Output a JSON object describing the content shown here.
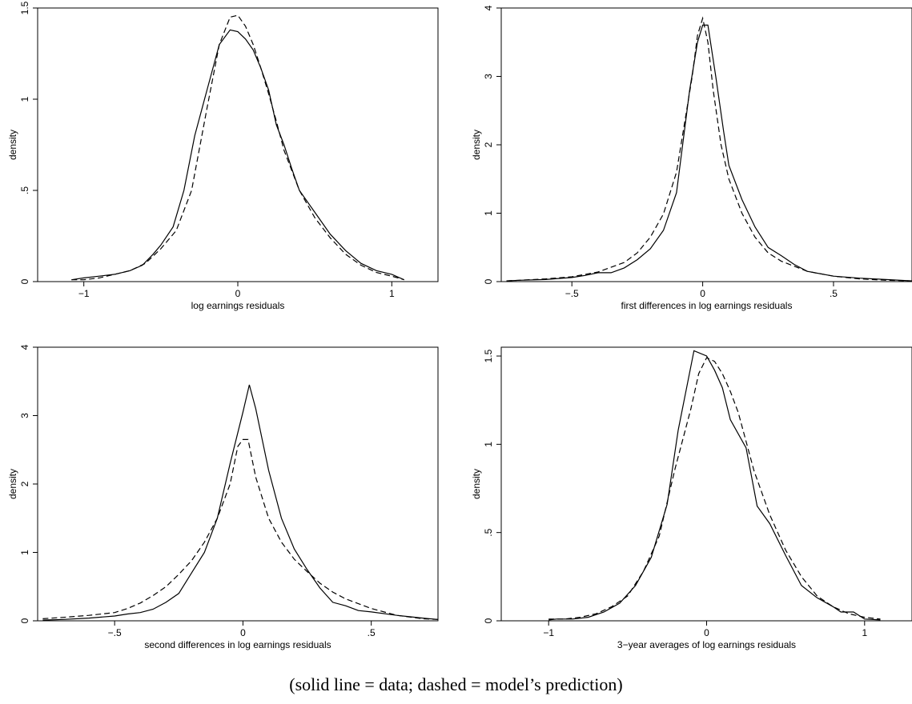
{
  "caption": "(solid line = data; dashed = model’s prediction)",
  "chart_data": [
    {
      "type": "line",
      "xlabel": "log earnings residuals",
      "ylabel": "density",
      "xlim": [
        -1.3,
        1.3
      ],
      "ylim": [
        0,
        1.5
      ],
      "xticks": [
        -1,
        0,
        1
      ],
      "xtick_labels": [
        "−1",
        "0",
        "1"
      ],
      "yticks": [
        0,
        0.5,
        1,
        1.5
      ],
      "ytick_labels": [
        "0",
        ".5",
        "1",
        "1.5"
      ],
      "series": [
        {
          "style": "solid",
          "x": [
            -1.08,
            -1.0,
            -0.9,
            -0.8,
            -0.7,
            -0.62,
            -0.55,
            -0.5,
            -0.42,
            -0.35,
            -0.28,
            -0.2,
            -0.12,
            -0.05,
            0.0,
            0.05,
            0.1,
            0.15,
            0.2,
            0.25,
            0.3,
            0.35,
            0.4,
            0.5,
            0.6,
            0.7,
            0.8,
            0.9,
            1.0,
            1.08
          ],
          "y": [
            0.01,
            0.02,
            0.03,
            0.04,
            0.06,
            0.09,
            0.15,
            0.2,
            0.3,
            0.5,
            0.8,
            1.05,
            1.3,
            1.38,
            1.37,
            1.33,
            1.27,
            1.17,
            1.05,
            0.86,
            0.75,
            0.62,
            0.5,
            0.38,
            0.26,
            0.17,
            0.1,
            0.06,
            0.04,
            0.01
          ]
        },
        {
          "style": "dashed",
          "x": [
            -1.08,
            -1.0,
            -0.9,
            -0.8,
            -0.7,
            -0.6,
            -0.5,
            -0.4,
            -0.3,
            -0.2,
            -0.12,
            -0.05,
            0.0,
            0.05,
            0.1,
            0.15,
            0.2,
            0.25,
            0.3,
            0.4,
            0.5,
            0.6,
            0.7,
            0.8,
            0.9,
            1.0,
            1.08
          ],
          "y": [
            0.01,
            0.01,
            0.02,
            0.04,
            0.06,
            0.1,
            0.18,
            0.28,
            0.5,
            0.95,
            1.3,
            1.45,
            1.46,
            1.4,
            1.3,
            1.17,
            1.03,
            0.88,
            0.72,
            0.5,
            0.35,
            0.24,
            0.15,
            0.09,
            0.05,
            0.03,
            0.01
          ]
        }
      ]
    },
    {
      "type": "line",
      "xlabel": "first differences in log earnings residuals",
      "ylabel": "density",
      "xlim": [
        -0.77,
        0.8
      ],
      "ylim": [
        0,
        4
      ],
      "xticks": [
        -0.5,
        0,
        0.5
      ],
      "xtick_labels": [
        "−.5",
        "0",
        ".5"
      ],
      "yticks": [
        0,
        1,
        2,
        3,
        4
      ],
      "ytick_labels": [
        "0",
        "1",
        "2",
        "3",
        "4"
      ],
      "series": [
        {
          "style": "solid",
          "x": [
            -0.75,
            -0.7,
            -0.6,
            -0.5,
            -0.45,
            -0.4,
            -0.35,
            -0.3,
            -0.25,
            -0.2,
            -0.15,
            -0.1,
            -0.05,
            -0.02,
            0.0,
            0.02,
            0.05,
            0.08,
            0.1,
            0.15,
            0.2,
            0.25,
            0.3,
            0.35,
            0.4,
            0.5,
            0.6,
            0.7,
            0.8
          ],
          "y": [
            0.01,
            0.02,
            0.03,
            0.06,
            0.09,
            0.13,
            0.13,
            0.2,
            0.32,
            0.48,
            0.75,
            1.3,
            2.8,
            3.5,
            3.75,
            3.75,
            3.0,
            2.2,
            1.7,
            1.2,
            0.8,
            0.5,
            0.38,
            0.25,
            0.15,
            0.08,
            0.05,
            0.03,
            0.01
          ]
        },
        {
          "style": "dashed",
          "x": [
            -0.75,
            -0.7,
            -0.6,
            -0.5,
            -0.4,
            -0.3,
            -0.25,
            -0.2,
            -0.15,
            -0.1,
            -0.07,
            -0.04,
            -0.02,
            0.0,
            0.02,
            0.04,
            0.07,
            0.1,
            0.15,
            0.2,
            0.25,
            0.3,
            0.4,
            0.5,
            0.6,
            0.7,
            0.8
          ],
          "y": [
            0.01,
            0.02,
            0.04,
            0.07,
            0.14,
            0.28,
            0.42,
            0.65,
            0.99,
            1.6,
            2.3,
            3.0,
            3.6,
            3.85,
            3.5,
            2.8,
            2.0,
            1.5,
            1.0,
            0.65,
            0.42,
            0.3,
            0.15,
            0.08,
            0.04,
            0.02,
            0.01
          ]
        }
      ]
    },
    {
      "type": "line",
      "xlabel": "second differences in log earnings residuals",
      "ylabel": "density",
      "xlim": [
        -0.8,
        0.76
      ],
      "ylim": [
        0,
        4
      ],
      "xticks": [
        -0.5,
        0,
        0.5
      ],
      "xtick_labels": [
        "−.5",
        "0",
        ".5"
      ],
      "yticks": [
        0,
        1,
        2,
        3,
        4
      ],
      "ytick_labels": [
        "0",
        "1",
        "2",
        "3",
        "4"
      ],
      "series": [
        {
          "style": "solid",
          "x": [
            -0.78,
            -0.7,
            -0.6,
            -0.5,
            -0.45,
            -0.4,
            -0.35,
            -0.3,
            -0.25,
            -0.2,
            -0.15,
            -0.1,
            -0.05,
            0.0,
            0.025,
            0.05,
            0.1,
            0.15,
            0.2,
            0.25,
            0.3,
            0.35,
            0.4,
            0.45,
            0.5,
            0.6,
            0.7,
            0.76
          ],
          "y": [
            0.01,
            0.02,
            0.04,
            0.07,
            0.1,
            0.12,
            0.17,
            0.27,
            0.4,
            0.7,
            1.0,
            1.5,
            2.3,
            3.05,
            3.45,
            3.1,
            2.2,
            1.5,
            1.05,
            0.75,
            0.48,
            0.27,
            0.22,
            0.15,
            0.13,
            0.08,
            0.04,
            0.02
          ]
        },
        {
          "style": "dashed",
          "x": [
            -0.78,
            -0.7,
            -0.6,
            -0.5,
            -0.45,
            -0.4,
            -0.35,
            -0.3,
            -0.25,
            -0.2,
            -0.15,
            -0.1,
            -0.05,
            -0.02,
            0.0,
            0.02,
            0.05,
            0.1,
            0.15,
            0.2,
            0.25,
            0.3,
            0.35,
            0.4,
            0.5,
            0.6,
            0.7,
            0.76
          ],
          "y": [
            0.03,
            0.05,
            0.08,
            0.12,
            0.18,
            0.26,
            0.37,
            0.5,
            0.68,
            0.88,
            1.15,
            1.5,
            2.0,
            2.55,
            2.65,
            2.65,
            2.1,
            1.5,
            1.15,
            0.9,
            0.72,
            0.55,
            0.42,
            0.32,
            0.18,
            0.08,
            0.03,
            0.02
          ]
        }
      ]
    },
    {
      "type": "line",
      "xlabel": "3−year averages of log earnings residuals",
      "ylabel": "density",
      "xlim": [
        -1.3,
        1.3
      ],
      "ylim": [
        0,
        1.55
      ],
      "xticks": [
        -1,
        0,
        1
      ],
      "xtick_labels": [
        "−1",
        "0",
        "1"
      ],
      "yticks": [
        0,
        0.5,
        1,
        1.5
      ],
      "ytick_labels": [
        "0",
        ".5",
        "1",
        "1.5"
      ],
      "series": [
        {
          "style": "solid",
          "x": [
            -1.0,
            -0.95,
            -0.85,
            -0.75,
            -0.65,
            -0.55,
            -0.45,
            -0.35,
            -0.25,
            -0.18,
            -0.08,
            0.0,
            0.05,
            0.1,
            0.15,
            0.25,
            0.32,
            0.4,
            0.5,
            0.6,
            0.7,
            0.8,
            0.85,
            0.93,
            1.0,
            1.1
          ],
          "y": [
            0.005,
            0.01,
            0.01,
            0.02,
            0.05,
            0.1,
            0.2,
            0.36,
            0.66,
            1.08,
            1.53,
            1.5,
            1.42,
            1.32,
            1.14,
            0.98,
            0.65,
            0.55,
            0.37,
            0.2,
            0.13,
            0.08,
            0.05,
            0.05,
            0.01,
            0.005
          ]
        },
        {
          "style": "dashed",
          "x": [
            -1.0,
            -0.9,
            -0.8,
            -0.7,
            -0.6,
            -0.5,
            -0.4,
            -0.3,
            -0.2,
            -0.1,
            -0.05,
            0.0,
            0.05,
            0.1,
            0.15,
            0.2,
            0.3,
            0.4,
            0.5,
            0.6,
            0.7,
            0.8,
            0.9,
            1.0,
            1.1
          ],
          "y": [
            0.01,
            0.01,
            0.02,
            0.04,
            0.08,
            0.14,
            0.28,
            0.48,
            0.86,
            1.2,
            1.4,
            1.49,
            1.47,
            1.4,
            1.3,
            1.18,
            0.85,
            0.6,
            0.4,
            0.25,
            0.14,
            0.08,
            0.04,
            0.02,
            0.01
          ]
        }
      ]
    }
  ]
}
